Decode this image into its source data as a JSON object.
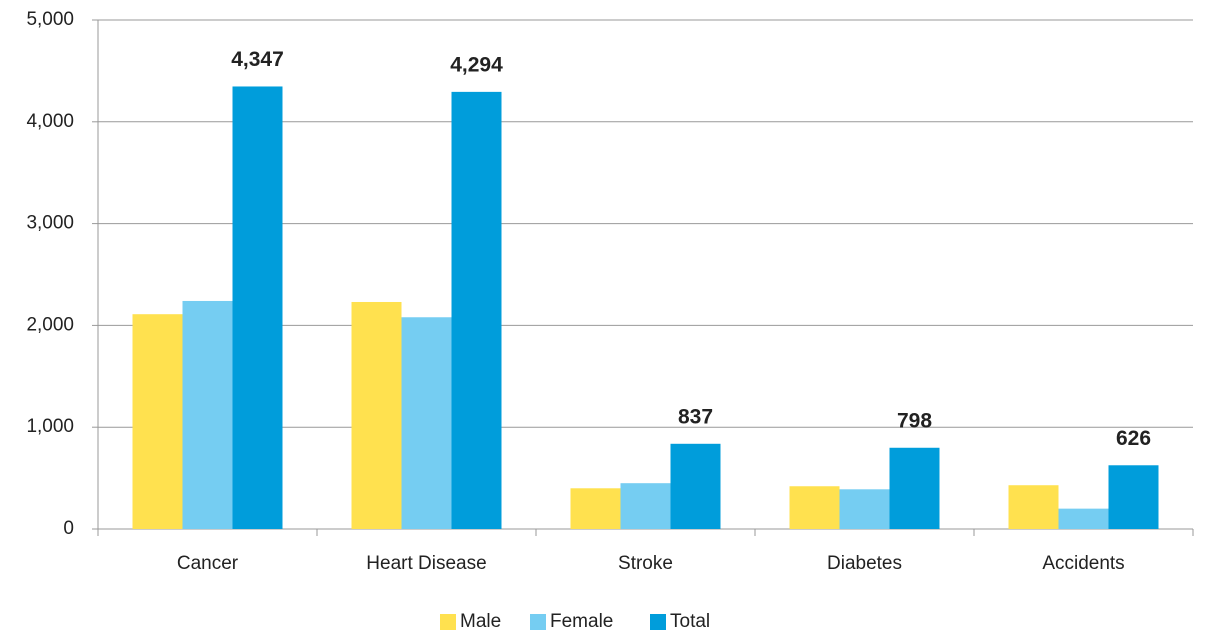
{
  "chart_data": {
    "type": "bar",
    "categories": [
      "Cancer",
      "Heart Disease",
      "Stroke",
      "Diabetes",
      "Accidents"
    ],
    "series": [
      {
        "name": "Male",
        "color": "#ffe14f",
        "values": [
          2110,
          2230,
          400,
          420,
          430
        ]
      },
      {
        "name": "Female",
        "color": "#75cdf2",
        "values": [
          2240,
          2080,
          450,
          390,
          200
        ]
      },
      {
        "name": "Total",
        "color": "#009ddb",
        "values": [
          4347,
          4294,
          837,
          798,
          626
        ],
        "value_labels": [
          "4,347",
          "4,294",
          "837",
          "798",
          "626"
        ]
      }
    ],
    "ylim": [
      0,
      5000
    ],
    "yticks": [
      0,
      {
        "value": 1000,
        "label": "1,000"
      },
      {
        "value": 2000,
        "label": "2,000"
      },
      {
        "value": 3000,
        "label": "3,000"
      },
      {
        "value": 4000,
        "label": "4,000"
      },
      {
        "value": 5000,
        "label": "5,000"
      }
    ],
    "grid": true,
    "legend": "bottom"
  }
}
